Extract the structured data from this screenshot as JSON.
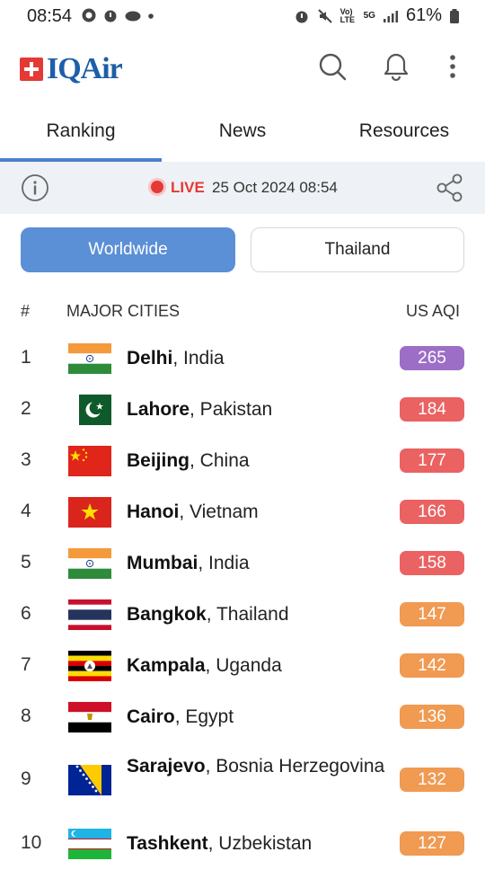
{
  "status_bar": {
    "time": "08:54",
    "battery": "61%",
    "network": "5G",
    "volte": "Vo) LTE"
  },
  "app": {
    "brand": "IQAir",
    "brand_color": "#1d5fa8"
  },
  "tabs": [
    {
      "label": "Ranking",
      "active": true
    },
    {
      "label": "News",
      "active": false
    },
    {
      "label": "Resources",
      "active": false
    }
  ],
  "live": {
    "label": "LIVE",
    "datetime": "25 Oct 2024 08:54"
  },
  "scope": {
    "worldwide": "Worldwide",
    "local": "Thailand"
  },
  "table": {
    "col_rank": "#",
    "col_city": "MAJOR CITIES",
    "col_aqi": "US AQI",
    "rows": [
      {
        "rank": "1",
        "city": "Delhi",
        "country": ", India",
        "aqi": "265",
        "color": "#9c6ec6",
        "flag": "india"
      },
      {
        "rank": "2",
        "city": "Lahore",
        "country": ", Pakistan",
        "aqi": "184",
        "color": "#ea6262",
        "flag": "pakistan"
      },
      {
        "rank": "3",
        "city": "Beijing",
        "country": ", China",
        "aqi": "177",
        "color": "#ea6262",
        "flag": "china"
      },
      {
        "rank": "4",
        "city": "Hanoi",
        "country": ", Vietnam",
        "aqi": "166",
        "color": "#ea6262",
        "flag": "vietnam"
      },
      {
        "rank": "5",
        "city": "Mumbai",
        "country": ", India",
        "aqi": "158",
        "color": "#ea6262",
        "flag": "india"
      },
      {
        "rank": "6",
        "city": "Bangkok",
        "country": ", Thailand",
        "aqi": "147",
        "color": "#f09a52",
        "flag": "thailand"
      },
      {
        "rank": "7",
        "city": "Kampala",
        "country": ", Uganda",
        "aqi": "142",
        "color": "#f09a52",
        "flag": "uganda"
      },
      {
        "rank": "8",
        "city": "Cairo",
        "country": ", Egypt",
        "aqi": "136",
        "color": "#f09a52",
        "flag": "egypt"
      },
      {
        "rank": "9",
        "city": "Sarajevo",
        "country": ", Bosnia Herzegovina",
        "aqi": "132",
        "color": "#f09a52",
        "flag": "bosnia"
      },
      {
        "rank": "10",
        "city": "Tashkent",
        "country": ", Uzbekistan",
        "aqi": "127",
        "color": "#f09a52",
        "flag": "uzbekistan"
      }
    ]
  }
}
